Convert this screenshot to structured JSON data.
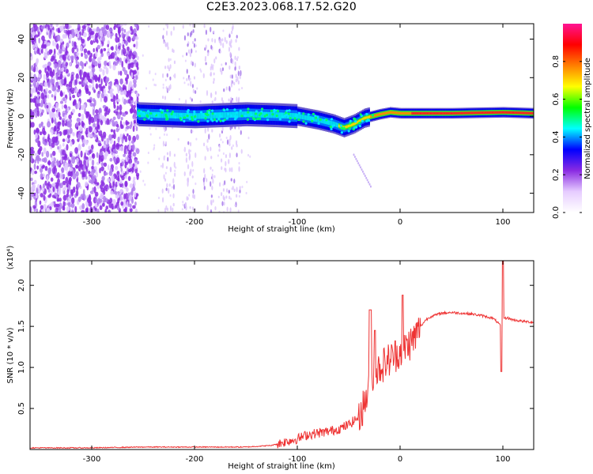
{
  "title": "C2E3.2023.068.17.52.G20",
  "chart_data": [
    {
      "type": "heatmap",
      "xlabel": "Height of straight line (km)",
      "ylabel": "Frequency (Hz)",
      "xlim": [
        -360,
        130
      ],
      "ylim": [
        -50,
        48
      ],
      "xticks": [
        -300,
        -200,
        -100,
        0,
        100
      ],
      "yticks": [
        -40,
        -20,
        0,
        20,
        40
      ],
      "colorbar": {
        "label": "Normalized spectral amplitude",
        "range": [
          0.0,
          1.0
        ],
        "ticks": [
          "0.0",
          "0.2",
          "0.4",
          "0.6",
          "0.8"
        ],
        "colors": [
          "#ffffff",
          "#e6ccff",
          "#8a2be2",
          "#0000ff",
          "#00ffff",
          "#00ff00",
          "#ffff00",
          "#ff7f00",
          "#ff0000",
          "#ff1493"
        ]
      },
      "ridge": {
        "x": [
          -255,
          -200,
          -150,
          -120,
          -100,
          -80,
          -65,
          -55,
          -45,
          -35,
          -20,
          -10,
          0,
          50,
          100,
          130
        ],
        "y": [
          1,
          0,
          1,
          0.5,
          0,
          -2,
          -4,
          -6,
          -4,
          -1,
          1,
          2,
          1.5,
          1.5,
          2,
          1.5
        ]
      },
      "noise_region_x": [
        -360,
        -255
      ]
    },
    {
      "type": "line",
      "xlabel": "Height of straight line (km)",
      "ylabel": "SNR (10 * v/v)",
      "multiplier": "(x10⁴)",
      "xlim": [
        -360,
        130
      ],
      "ylim": [
        0,
        2.3
      ],
      "xticks": [
        -300,
        -200,
        -100,
        0,
        100
      ],
      "yticks": [
        "0.5",
        "1.0",
        "1.5",
        "2.0"
      ],
      "line_color": "#ee3333",
      "series": [
        {
          "x": [
            -360,
            -300,
            -250,
            -200,
            -150,
            -125,
            -110,
            -100,
            -90,
            -80,
            -70,
            -60,
            -50,
            -40,
            -35,
            -30,
            -25,
            -20,
            -15,
            -10,
            -5,
            0,
            5,
            10,
            15,
            20,
            25,
            30,
            40,
            50,
            60,
            70,
            80,
            90,
            95,
            98,
            100,
            102,
            105,
            110,
            120,
            130
          ],
          "values": [
            0.02,
            0.02,
            0.03,
            0.03,
            0.03,
            0.05,
            0.1,
            0.13,
            0.18,
            0.2,
            0.22,
            0.25,
            0.3,
            0.4,
            0.55,
            0.75,
            0.9,
            1.0,
            1.05,
            1.1,
            1.15,
            1.2,
            1.25,
            1.3,
            1.38,
            1.5,
            1.58,
            1.62,
            1.66,
            1.67,
            1.66,
            1.65,
            1.63,
            1.6,
            1.55,
            1.5,
            1.62,
            1.6,
            1.6,
            1.58,
            1.56,
            1.55
          ]
        }
      ]
    }
  ]
}
